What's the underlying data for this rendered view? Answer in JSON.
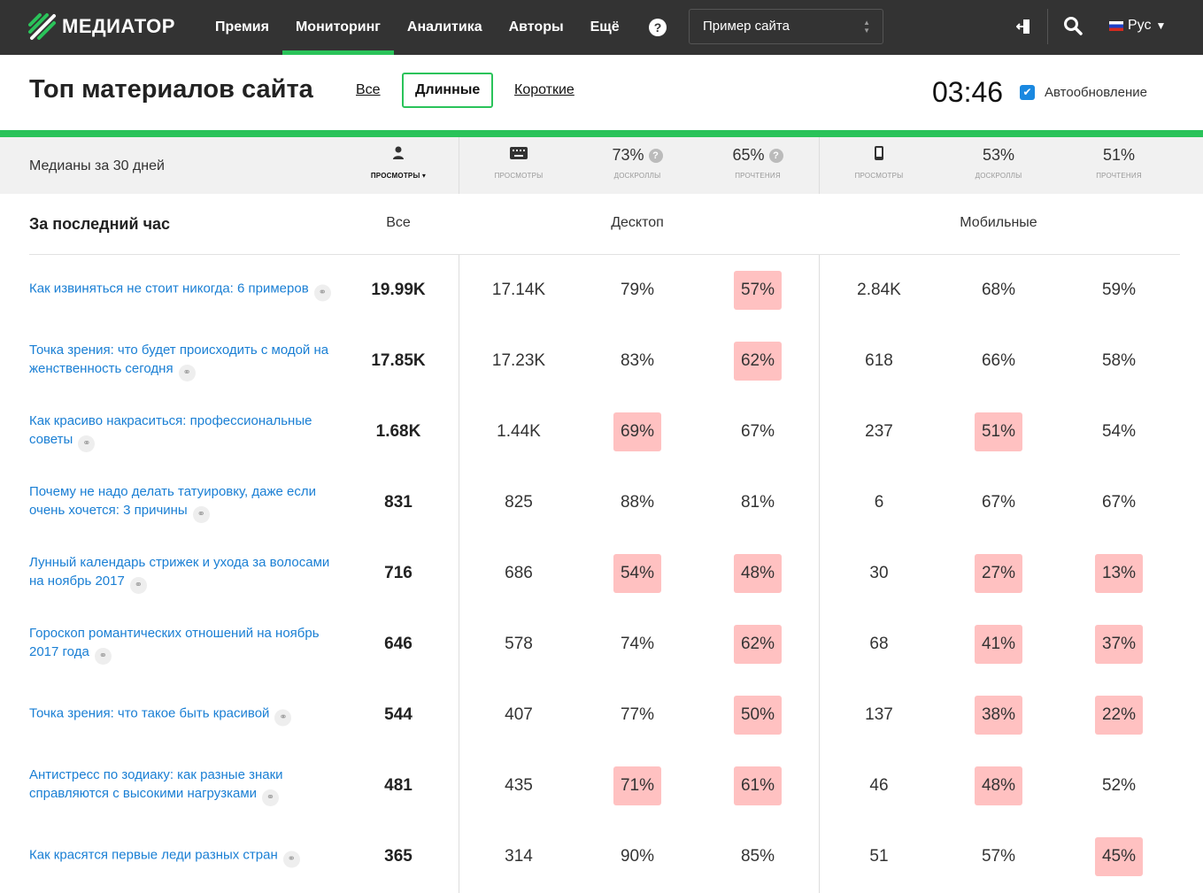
{
  "topbar": {
    "logo": "МЕДИАТОР",
    "nav": [
      {
        "label": "Премия"
      },
      {
        "label": "Мониторинг",
        "active": true
      },
      {
        "label": "Аналитика"
      },
      {
        "label": "Авторы"
      },
      {
        "label": "Ещё"
      }
    ],
    "help": "?",
    "site": "Пример сайта",
    "lang": "Рус"
  },
  "header": {
    "title": "Топ материалов сайта",
    "filters": [
      "Все",
      "Длинные",
      "Короткие"
    ],
    "active_filter": 1,
    "timer": "03:46",
    "autoupdate": "Автообновление",
    "autoupdate_checked": true
  },
  "medians": {
    "label": "Медианы за 30 дней",
    "cols": [
      {
        "value": "",
        "label": "ПРОСМОТРЫ ▾",
        "icon": "users-icon"
      },
      {
        "value": "",
        "label": "ПРОСМОТРЫ",
        "icon": "keyboard-icon"
      },
      {
        "value": "73%",
        "label": "ДОСКРОЛЛЫ",
        "help": true
      },
      {
        "value": "65%",
        "label": "ПРОЧТЕНИЯ",
        "help": true
      },
      {
        "value": "",
        "label": "ПРОСМОТРЫ",
        "icon": "mobile-icon"
      },
      {
        "value": "53%",
        "label": "ДОСКРОЛЛЫ"
      },
      {
        "value": "51%",
        "label": "ПРОЧТЕНИЯ"
      }
    ]
  },
  "section": {
    "title": "За последний час",
    "all": "Все",
    "desktop": "Десктоп",
    "mobile": "Мобильные"
  },
  "colors": {
    "accent": "#2ac35a",
    "highlight": "#ffc1c1",
    "link": "#1a7fd4"
  },
  "rows": [
    {
      "title": "Как извиняться не стоит никогда: 6 примеров",
      "all": "19.99K",
      "v": [
        "17.14K",
        "79%",
        "57%",
        "2.84K",
        "68%",
        "59%"
      ],
      "hl": [
        0,
        0,
        1,
        0,
        0,
        0
      ]
    },
    {
      "title": "Точка зрения: что будет происходить с модой на женственность сегодня",
      "all": "17.85K",
      "v": [
        "17.23K",
        "83%",
        "62%",
        "618",
        "66%",
        "58%"
      ],
      "hl": [
        0,
        0,
        1,
        0,
        0,
        0
      ]
    },
    {
      "title": "Как красиво накраситься: профессиональные советы",
      "all": "1.68K",
      "v": [
        "1.44K",
        "69%",
        "67%",
        "237",
        "51%",
        "54%"
      ],
      "hl": [
        0,
        1,
        0,
        0,
        1,
        0
      ]
    },
    {
      "title": "Почему не надо делать татуировку, даже если очень хочется: 3 причины",
      "all": "831",
      "v": [
        "825",
        "88%",
        "81%",
        "6",
        "67%",
        "67%"
      ],
      "hl": [
        0,
        0,
        0,
        0,
        0,
        0
      ]
    },
    {
      "title": "Лунный календарь стрижек и ухода за волосами на ноябрь 2017",
      "all": "716",
      "v": [
        "686",
        "54%",
        "48%",
        "30",
        "27%",
        "13%"
      ],
      "hl": [
        0,
        1,
        1,
        0,
        1,
        1
      ]
    },
    {
      "title": "Гороскоп романтических отношений на ноябрь 2017 года",
      "all": "646",
      "v": [
        "578",
        "74%",
        "62%",
        "68",
        "41%",
        "37%"
      ],
      "hl": [
        0,
        0,
        1,
        0,
        1,
        1
      ]
    },
    {
      "title": "Точка зрения: что такое быть красивой",
      "all": "544",
      "v": [
        "407",
        "77%",
        "50%",
        "137",
        "38%",
        "22%"
      ],
      "hl": [
        0,
        0,
        1,
        0,
        1,
        1
      ]
    },
    {
      "title": "Антистресс по зодиаку: как разные знаки справляются с высокими нагрузками",
      "all": "481",
      "v": [
        "435",
        "71%",
        "61%",
        "46",
        "48%",
        "52%"
      ],
      "hl": [
        0,
        1,
        1,
        0,
        1,
        0
      ]
    },
    {
      "title": "Как красятся первые леди разных стран",
      "all": "365",
      "v": [
        "314",
        "90%",
        "85%",
        "51",
        "57%",
        "45%"
      ],
      "hl": [
        0,
        0,
        0,
        0,
        0,
        1
      ]
    }
  ]
}
